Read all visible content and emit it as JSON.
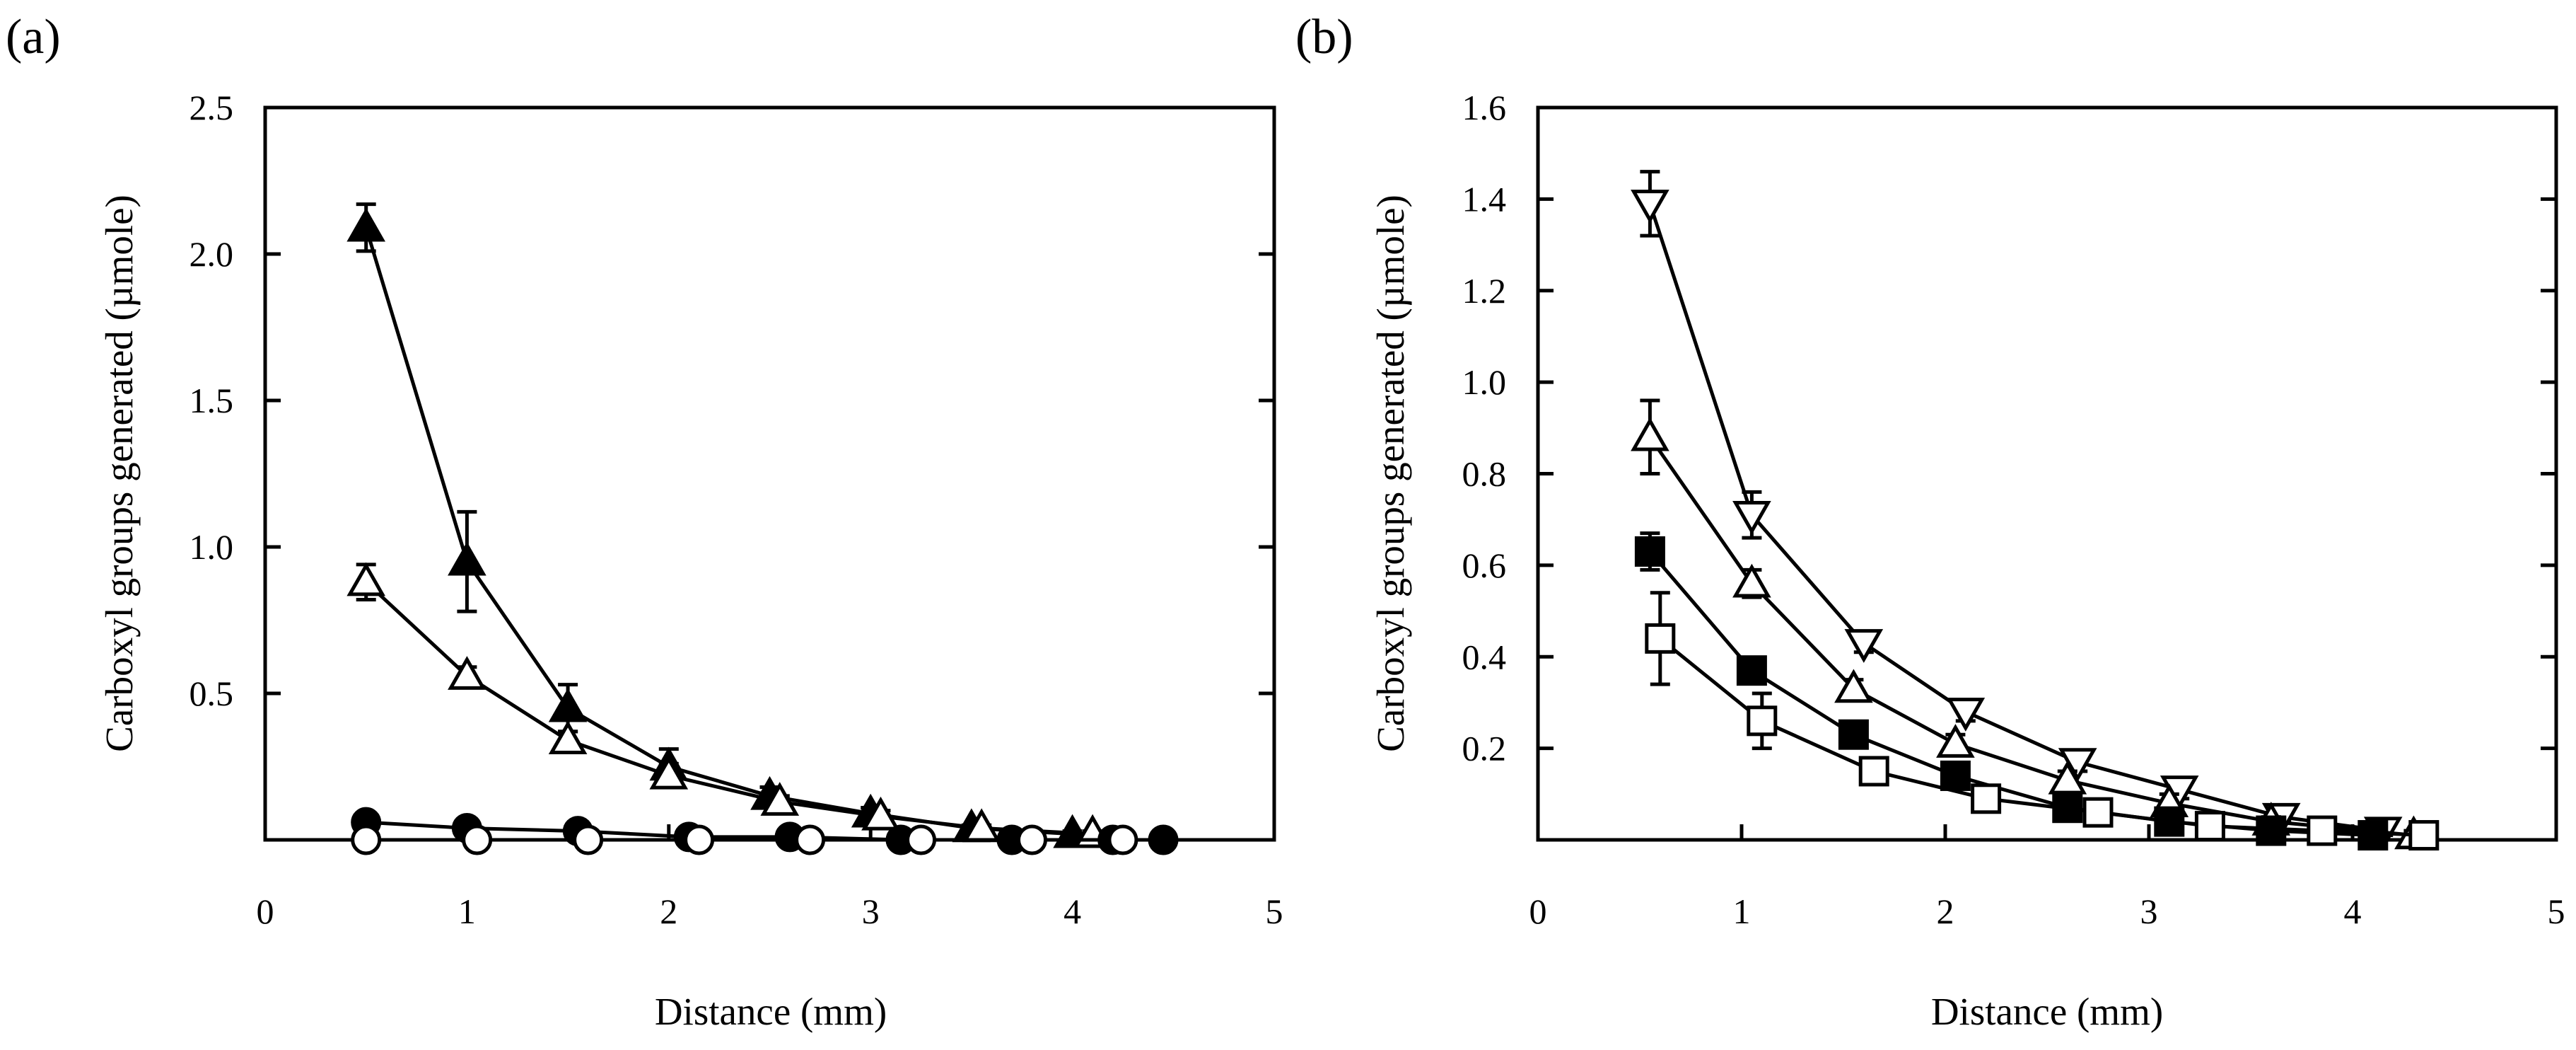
{
  "chart_data": [
    {
      "id": "a",
      "type": "line",
      "panel_label": "(a)",
      "title": "",
      "xlabel": "Distance (mm)",
      "ylabel": "Carboxyl groups generated (µmole)",
      "xlim": [
        0,
        5
      ],
      "ylim": [
        0,
        2.5
      ],
      "xticks": [
        0,
        1,
        2,
        3,
        4,
        5
      ],
      "xtick_labels": [
        "0",
        "1",
        "2",
        "3",
        "4",
        "5"
      ],
      "yticks": [
        0.5,
        1.0,
        1.5,
        2.0,
        2.5
      ],
      "ytick_labels": [
        "0.5",
        "1.0",
        "1.5",
        "2.0",
        "2.5"
      ],
      "legend": "none",
      "series": [
        {
          "name": "filled-triangle",
          "marker": "triangle-up",
          "fill": "#000000",
          "x": [
            0.5,
            1.0,
            1.5,
            2.0,
            2.5,
            3.0,
            3.5,
            4.0
          ],
          "y": [
            2.09,
            0.95,
            0.45,
            0.25,
            0.15,
            0.09,
            0.04,
            0.02
          ],
          "err": [
            0.08,
            0.17,
            0.08,
            0.06,
            0.03,
            0.02,
            0.01,
            0.01
          ]
        },
        {
          "name": "open-triangle",
          "marker": "triangle-up",
          "fill": "#ffffff",
          "x": [
            0.5,
            1.0,
            1.5,
            2.0,
            2.55,
            3.05,
            3.55,
            4.1
          ],
          "y": [
            0.88,
            0.56,
            0.34,
            0.22,
            0.13,
            0.08,
            0.04,
            0.02
          ],
          "err": [
            0.06,
            0.03,
            0.03,
            0.04,
            0.02,
            0.02,
            0.01,
            0.01
          ]
        },
        {
          "name": "filled-circle",
          "marker": "circle",
          "fill": "#000000",
          "x": [
            0.5,
            1.0,
            1.55,
            2.1,
            2.6,
            3.15,
            3.7,
            4.2,
            4.45
          ],
          "y": [
            0.06,
            0.04,
            0.03,
            0.01,
            0.01,
            0.0,
            0.0,
            0.0,
            0.0
          ],
          "err": [
            0,
            0,
            0,
            0,
            0,
            0,
            0,
            0,
            0
          ]
        },
        {
          "name": "open-circle",
          "marker": "circle",
          "fill": "#ffffff",
          "x": [
            0.5,
            1.05,
            1.6,
            2.15,
            2.7,
            3.25,
            3.8,
            4.25
          ],
          "y": [
            0.0,
            0.0,
            0.0,
            0.0,
            0.0,
            0.0,
            0.0,
            0.0
          ],
          "err": [
            0,
            0,
            0,
            0,
            0,
            0,
            0,
            0
          ]
        }
      ]
    },
    {
      "id": "b",
      "type": "line",
      "panel_label": "(b)",
      "title": "",
      "xlabel": "Distance (mm)",
      "ylabel": "Carboxyl groups generated (µmole)",
      "xlim": [
        0,
        5
      ],
      "ylim": [
        0,
        1.6
      ],
      "xticks": [
        0,
        1,
        2,
        3,
        4,
        5
      ],
      "xtick_labels": [
        "0",
        "1",
        "2",
        "3",
        "4",
        "5"
      ],
      "yticks": [
        0.2,
        0.4,
        0.6,
        0.8,
        1.0,
        1.2,
        1.4,
        1.6
      ],
      "ytick_labels": [
        "0.2",
        "0.4",
        "0.6",
        "0.8",
        "1.0",
        "1.2",
        "1.4",
        "1.6"
      ],
      "legend": "none",
      "series": [
        {
          "name": "open-inverted-triangle",
          "marker": "triangle-down",
          "fill": "#ffffff",
          "x": [
            0.55,
            1.05,
            1.6,
            2.1,
            2.65,
            3.15,
            3.65,
            4.15
          ],
          "y": [
            1.39,
            0.71,
            0.43,
            0.28,
            0.17,
            0.11,
            0.05,
            0.02
          ],
          "err": [
            0.07,
            0.05,
            0.02,
            0.02,
            0.02,
            0.02,
            0.01,
            0.01
          ]
        },
        {
          "name": "open-triangle",
          "marker": "triangle-up",
          "fill": "#ffffff",
          "x": [
            0.55,
            1.05,
            1.55,
            2.05,
            2.6,
            3.1,
            3.6,
            4.3
          ],
          "y": [
            0.88,
            0.56,
            0.33,
            0.21,
            0.13,
            0.08,
            0.04,
            0.01
          ],
          "err": [
            0.08,
            0.03,
            0.02,
            0.02,
            0.02,
            0.02,
            0.01,
            0.01
          ]
        },
        {
          "name": "filled-square",
          "marker": "square",
          "fill": "#000000",
          "x": [
            0.55,
            1.05,
            1.55,
            2.05,
            2.6,
            3.1,
            3.6,
            4.1
          ],
          "y": [
            0.63,
            0.37,
            0.23,
            0.14,
            0.07,
            0.04,
            0.02,
            0.01
          ],
          "err": [
            0.04,
            0.02,
            0.02,
            0.02,
            0.01,
            0.01,
            0.01,
            0.01
          ]
        },
        {
          "name": "open-square",
          "marker": "square",
          "fill": "#ffffff",
          "x": [
            0.6,
            1.1,
            1.65,
            2.2,
            2.75,
            3.3,
            3.85,
            4.35
          ],
          "y": [
            0.44,
            0.26,
            0.15,
            0.09,
            0.06,
            0.03,
            0.02,
            0.01
          ],
          "err": [
            0.1,
            0.06,
            0.02,
            0.02,
            0.01,
            0.01,
            0.01,
            0.01
          ]
        }
      ]
    }
  ]
}
